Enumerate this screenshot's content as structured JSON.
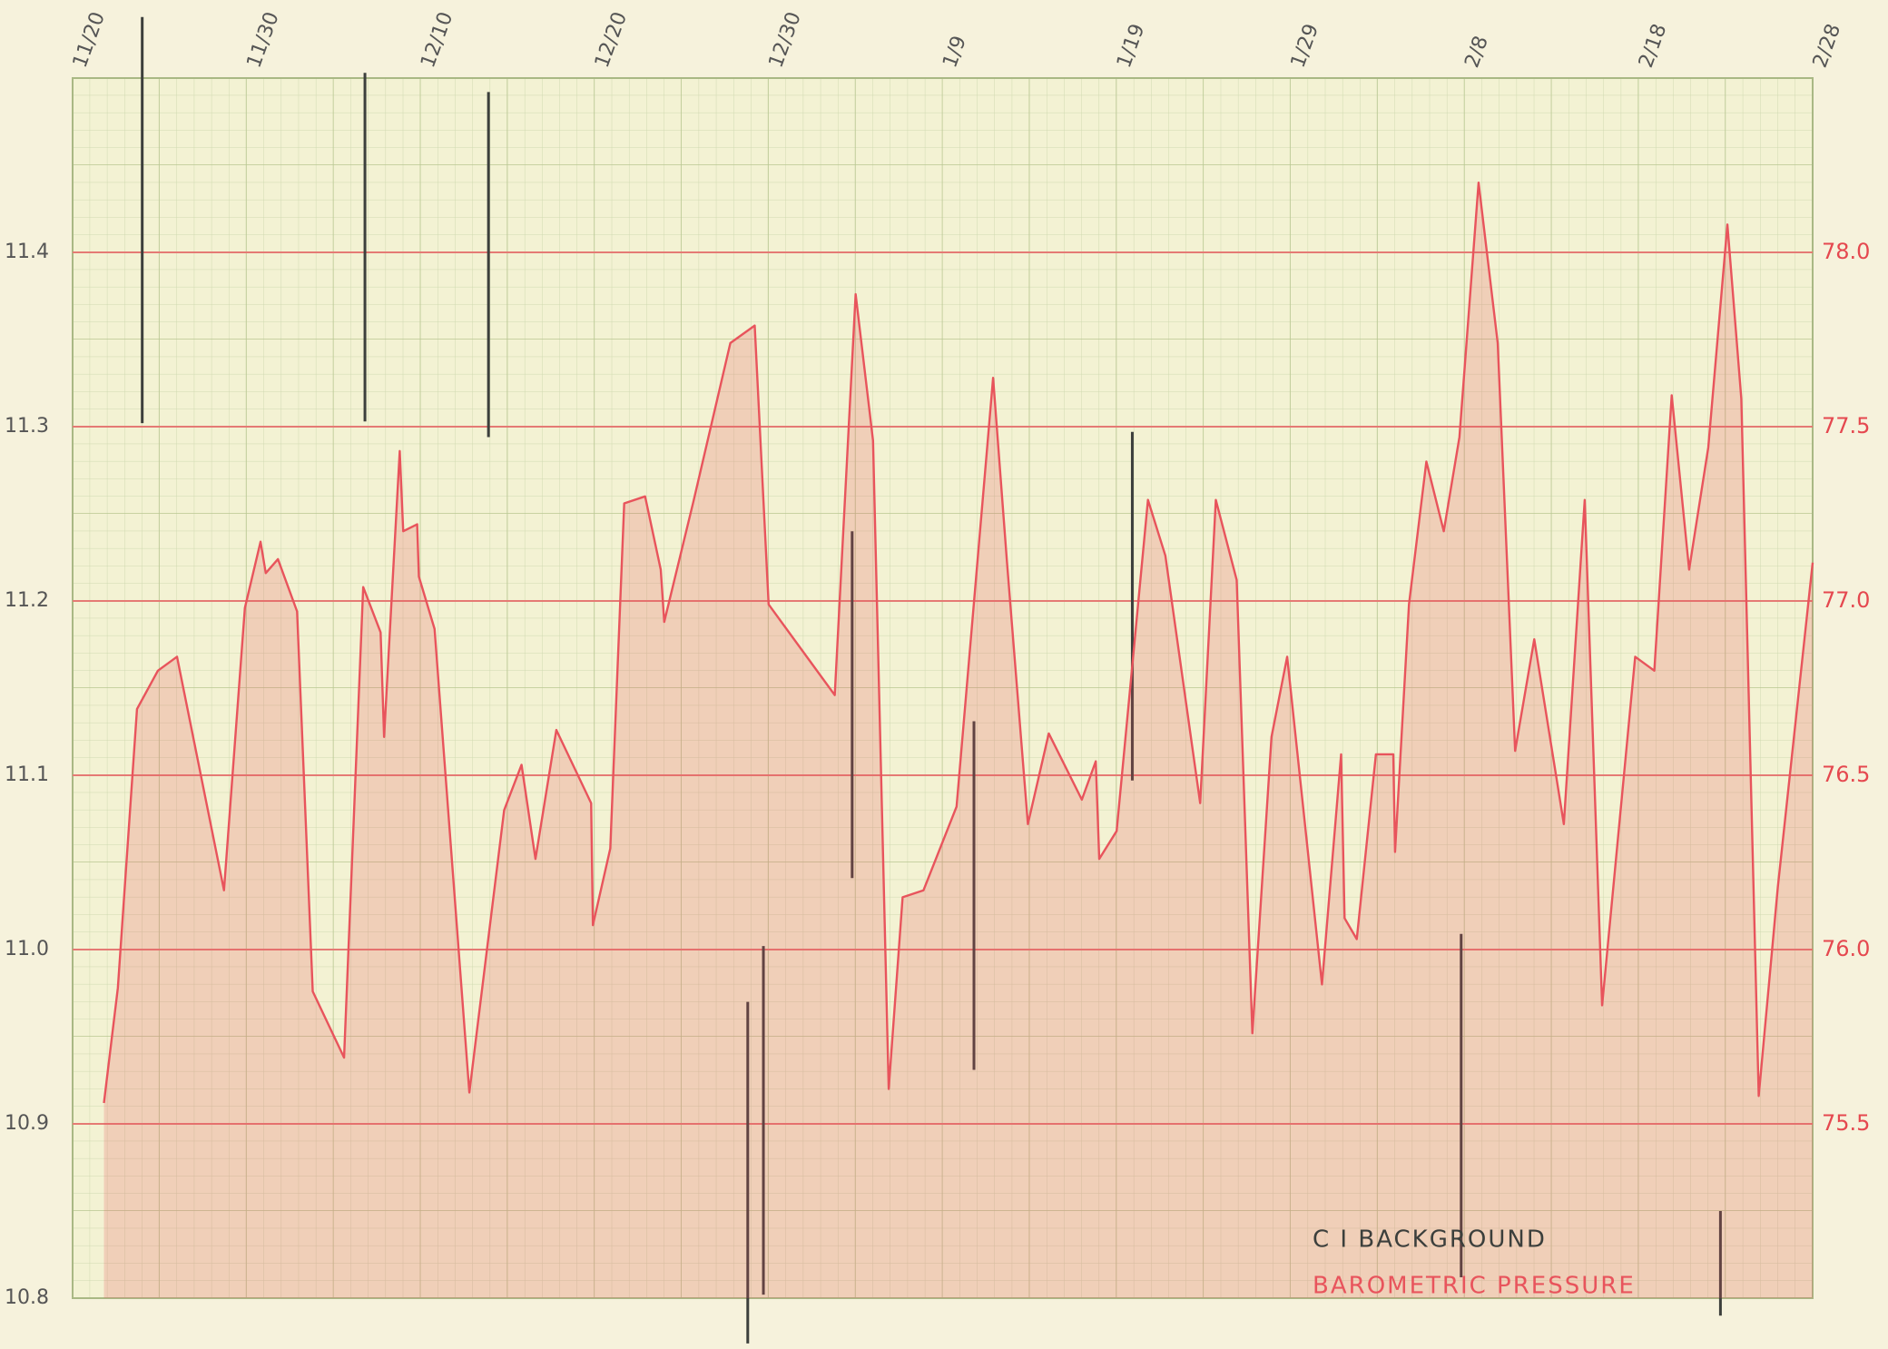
{
  "chart_data": {
    "type": "line",
    "xlim": [
      0,
      100
    ],
    "xticks": [
      {
        "value": 0,
        "label": "11/20"
      },
      {
        "value": 10,
        "label": "11/30"
      },
      {
        "value": 20,
        "label": "12/10"
      },
      {
        "value": 30,
        "label": "12/20"
      },
      {
        "value": 40,
        "label": "12/30"
      },
      {
        "value": 50,
        "label": "1/9"
      },
      {
        "value": 60,
        "label": "1/19"
      },
      {
        "value": 70,
        "label": "1/29"
      },
      {
        "value": 80,
        "label": "2/8"
      },
      {
        "value": 90,
        "label": "2/18"
      },
      {
        "value": 100,
        "label": "2/28"
      }
    ],
    "ylim": [
      10.8,
      11.5
    ],
    "yticks": [
      10.8,
      10.9,
      {
        "value": 11,
        "label": "11.0"
      },
      11.1,
      11.2,
      11.3,
      11.4
    ],
    "y2lim": [
      75.0,
      78.5
    ],
    "y2ticks": [
      75.5,
      {
        "value": 76,
        "label": "76.0"
      },
      76.5,
      {
        "value": 77,
        "label": "77.0"
      },
      77.5,
      {
        "value": 78,
        "label": "78.0"
      }
    ],
    "grid": true,
    "series": [
      {
        "name": "C I BACKGROUND",
        "type": "range",
        "color": "#3c3f3c",
        "x": [
          4.0,
          16.8,
          23.9,
          38.8,
          39.7,
          44.8,
          51.8,
          60.9,
          79.8,
          94.7
        ],
        "high": [
          11.535,
          11.503,
          11.492,
          10.97,
          11.002,
          11.24,
          11.131,
          11.297,
          11.009,
          10.85
        ],
        "low": [
          11.302,
          11.303,
          11.294,
          10.774,
          10.802,
          11.041,
          10.931,
          11.097,
          10.812,
          10.79
        ]
      },
      {
        "name": "BAROMETRIC PRESSURE",
        "type": "area",
        "axis": "y2",
        "color": "#e8545c",
        "x": [
          1.8,
          2.6,
          3.7,
          4.9,
          6.0,
          8.7,
          9.9,
          10.8,
          11.1,
          11.8,
          12.9,
          13.8,
          15.6,
          16.7,
          17.7,
          17.9,
          18.8,
          19.0,
          19.8,
          19.9,
          20.8,
          22.8,
          24.8,
          25.8,
          26.6,
          27.8,
          29.8,
          29.9,
          30.9,
          31.7,
          32.9,
          33.8,
          34.0,
          35.7,
          37.8,
          39.2,
          40.0,
          43.8,
          45.0,
          46.0,
          46.9,
          47.7,
          48.9,
          50.8,
          52.9,
          53.7,
          54.9,
          56.1,
          58.0,
          58.8,
          59.0,
          60.0,
          61.8,
          62.8,
          64.8,
          65.7,
          66.9,
          67.8,
          68.9,
          69.8,
          71.8,
          72.9,
          73.1,
          73.8,
          74.9,
          75.9,
          76.0,
          76.8,
          77.8,
          78.8,
          79.7,
          80.8,
          81.9,
          82.9,
          84.0,
          85.7,
          86.9,
          87.9,
          89.8,
          90.9,
          91.9,
          92.9,
          94.0,
          95.1,
          95.9,
          96.9,
          98.0,
          100.0
        ],
        "values": [
          75.56,
          75.89,
          76.69,
          76.8,
          76.84,
          76.17,
          76.98,
          77.17,
          77.08,
          77.12,
          76.97,
          75.88,
          75.69,
          77.04,
          76.91,
          76.61,
          77.43,
          77.2,
          77.22,
          77.07,
          76.92,
          75.59,
          76.4,
          76.53,
          76.26,
          76.63,
          76.42,
          76.07,
          76.29,
          77.28,
          77.3,
          77.09,
          76.94,
          77.29,
          77.74,
          77.79,
          76.99,
          76.73,
          77.88,
          77.46,
          75.6,
          76.15,
          76.17,
          76.41,
          77.64,
          77.11,
          76.36,
          76.62,
          76.43,
          76.54,
          76.26,
          76.34,
          77.29,
          77.13,
          76.42,
          77.29,
          77.06,
          75.76,
          76.61,
          76.84,
          75.9,
          76.56,
          76.09,
          76.03,
          76.56,
          76.56,
          76.28,
          76.99,
          77.4,
          77.2,
          77.47,
          78.2,
          77.74,
          76.57,
          76.89,
          76.36,
          77.29,
          75.84,
          76.84,
          76.8,
          77.59,
          77.09,
          77.44,
          78.08,
          77.58,
          75.58,
          76.18,
          77.11
        ]
      }
    ]
  }
}
